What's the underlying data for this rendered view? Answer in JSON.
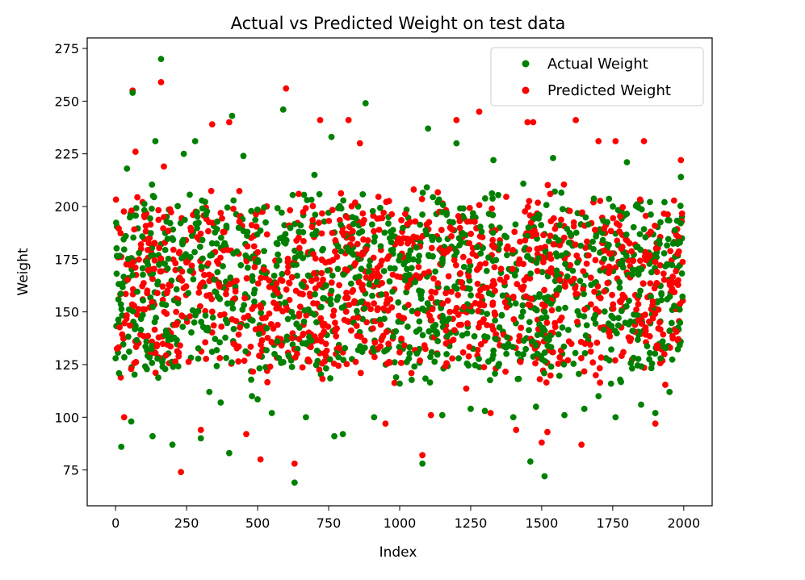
{
  "chart_data": {
    "type": "scatter",
    "title": "Actual vs Predicted Weight on test data",
    "xlabel": "Index",
    "ylabel": "Weight",
    "xlim": [
      -100,
      2100
    ],
    "ylim": [
      58,
      280
    ],
    "x_ticks": [
      0,
      250,
      500,
      750,
      1000,
      1250,
      1500,
      1750,
      2000
    ],
    "y_ticks": [
      75,
      100,
      125,
      150,
      175,
      200,
      225,
      250,
      275
    ],
    "grid": false,
    "legend_placement": "top-right",
    "series": [
      {
        "name": "Actual Weight",
        "color": "#008000",
        "points": [
          [
            0,
            128
          ],
          [
            20,
            86
          ],
          [
            40,
            218
          ],
          [
            55,
            98
          ],
          [
            60,
            254
          ],
          [
            130,
            91
          ],
          [
            140,
            231
          ],
          [
            160,
            270
          ],
          [
            200,
            87
          ],
          [
            240,
            225
          ],
          [
            280,
            231
          ],
          [
            300,
            90
          ],
          [
            330,
            112
          ],
          [
            370,
            107
          ],
          [
            400,
            83
          ],
          [
            410,
            243
          ],
          [
            450,
            224
          ],
          [
            480,
            110
          ],
          [
            550,
            102
          ],
          [
            590,
            246
          ],
          [
            630,
            69
          ],
          [
            670,
            100
          ],
          [
            700,
            215
          ],
          [
            760,
            233
          ],
          [
            770,
            91
          ],
          [
            800,
            92
          ],
          [
            880,
            249
          ],
          [
            910,
            100
          ],
          [
            1000,
            116
          ],
          [
            1080,
            78
          ],
          [
            1100,
            237
          ],
          [
            1150,
            101
          ],
          [
            1200,
            230
          ],
          [
            1250,
            104
          ],
          [
            1300,
            103
          ],
          [
            1330,
            222
          ],
          [
            1400,
            100
          ],
          [
            1460,
            79
          ],
          [
            1480,
            105
          ],
          [
            1510,
            72
          ],
          [
            1540,
            223
          ],
          [
            1580,
            101
          ],
          [
            1650,
            104
          ],
          [
            1700,
            110
          ],
          [
            1760,
            100
          ],
          [
            1800,
            221
          ],
          [
            1850,
            106
          ],
          [
            1900,
            102
          ],
          [
            1950,
            112
          ],
          [
            1990,
            214
          ]
        ],
        "random_fill": {
          "count": 1150,
          "x_range": [
            0,
            2000
          ],
          "y_mean": 162,
          "y_spread": 48
        }
      },
      {
        "name": "Predicted Weight",
        "color": "#ff0000",
        "points": [
          [
            30,
            100
          ],
          [
            60,
            255
          ],
          [
            70,
            226
          ],
          [
            160,
            259
          ],
          [
            170,
            219
          ],
          [
            230,
            74
          ],
          [
            300,
            94
          ],
          [
            340,
            239
          ],
          [
            400,
            240
          ],
          [
            460,
            92
          ],
          [
            510,
            80
          ],
          [
            600,
            256
          ],
          [
            630,
            78
          ],
          [
            720,
            241
          ],
          [
            820,
            241
          ],
          [
            860,
            230
          ],
          [
            950,
            97
          ],
          [
            1080,
            82
          ],
          [
            1110,
            101
          ],
          [
            1200,
            241
          ],
          [
            1280,
            245
          ],
          [
            1320,
            102
          ],
          [
            1410,
            94
          ],
          [
            1450,
            240
          ],
          [
            1470,
            240
          ],
          [
            1500,
            88
          ],
          [
            1520,
            93
          ],
          [
            1620,
            241
          ],
          [
            1640,
            87
          ],
          [
            1700,
            231
          ],
          [
            1760,
            231
          ],
          [
            1860,
            231
          ],
          [
            1900,
            97
          ],
          [
            1990,
            222
          ]
        ],
        "random_fill": {
          "count": 1150,
          "x_range": [
            0,
            2000
          ],
          "y_mean": 162,
          "y_spread": 46
        }
      }
    ]
  }
}
